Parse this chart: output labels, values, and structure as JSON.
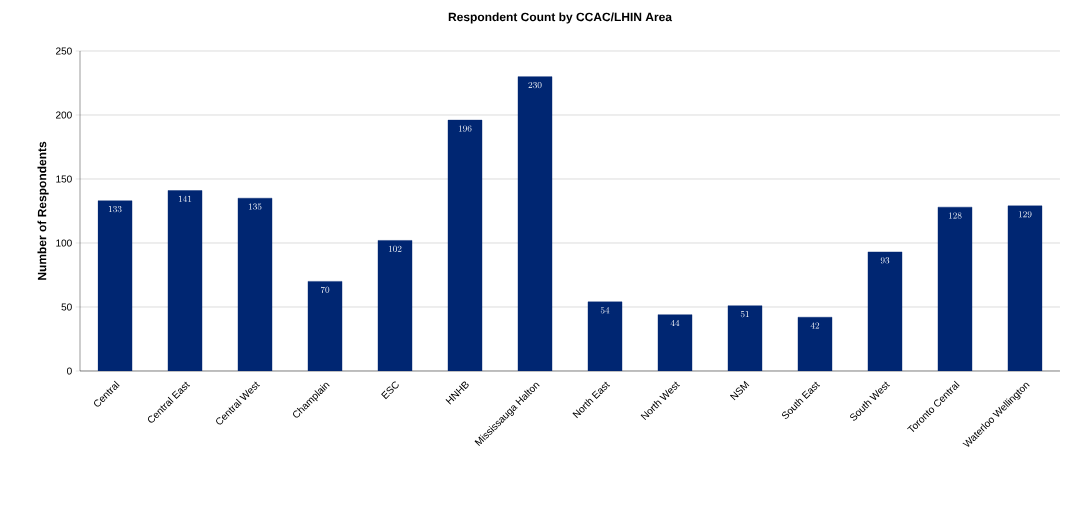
{
  "chart_data": {
    "type": "bar",
    "title": "Respondent Count by CCAC/LHIN Area",
    "ylabel": "Number of Respondents",
    "categories": [
      "Central",
      "Central East",
      "Central West",
      "Champlain",
      "ESC",
      "HNHB",
      "Mississauga Halton",
      "North East",
      "North West",
      "NSM",
      "South East",
      "South West",
      "Toronto Central",
      "Waterloo Wellington"
    ],
    "values": [
      133,
      141,
      135,
      70,
      102,
      196,
      230,
      54,
      44,
      51,
      42,
      93,
      128,
      129
    ],
    "color": "#002672",
    "ylim": [
      0,
      250
    ],
    "yticks": [
      0,
      50,
      100,
      150,
      200,
      250
    ],
    "grid": "y",
    "data_labels": true
  }
}
